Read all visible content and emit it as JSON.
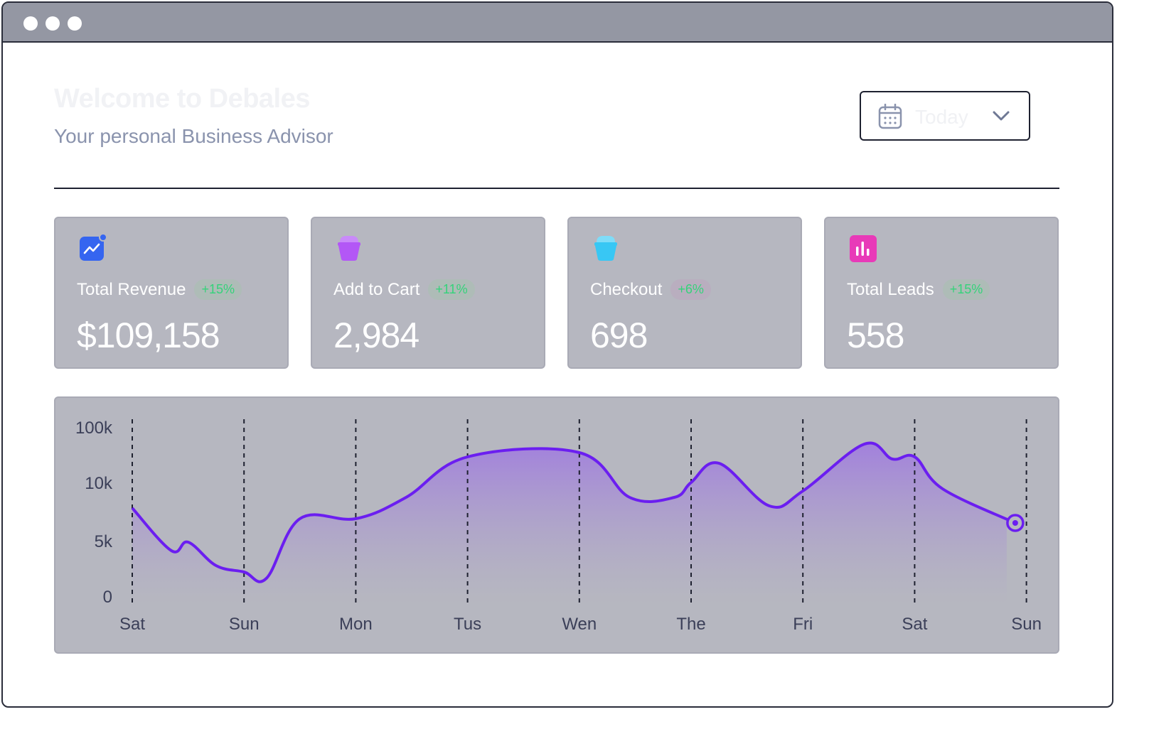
{
  "header": {
    "welcome": "Welcome to Debales",
    "subtitle": "Your personal Business Advisor"
  },
  "date_select": {
    "label": "Today",
    "icon": "calendar-icon"
  },
  "cards": [
    {
      "name": "Total Revenue",
      "badge": "+15%",
      "value": "$109,158",
      "icon": "trend-chart-icon",
      "icon_color": "#3565f0"
    },
    {
      "name": "Add to Cart",
      "badge": "+11%",
      "value": "2,984",
      "icon": "basket-icon",
      "icon_color": "#b357f6"
    },
    {
      "name": "Checkout",
      "badge": "+6%",
      "value": "698",
      "icon": "basket-icon",
      "icon_color": "#38c7f4"
    },
    {
      "name": "Total Leads",
      "badge": "+15%",
      "value": "558",
      "icon": "bar-chart-icon",
      "icon_color": "#e83ab8"
    }
  ],
  "colors": {
    "line": "#6b1ef0",
    "badge_text": "#34d37a",
    "card_bg": "#b6b7c0"
  },
  "chart_data": {
    "type": "area",
    "y_ticks": [
      "100k",
      "10k",
      "5k",
      "0"
    ],
    "categories": [
      "Sat",
      "Sun",
      "Mon",
      "Tus",
      "Wen",
      "The",
      "Fri",
      "Sat",
      "Sun"
    ],
    "x": [
      0,
      0.35,
      0.5,
      0.75,
      1.0,
      1.2,
      1.5,
      2.0,
      2.45,
      3.0,
      4.0,
      4.45,
      4.85,
      5.0,
      5.25,
      5.7,
      6.0,
      6.55,
      6.8,
      7.0,
      7.25,
      7.9
    ],
    "values": [
      4.5,
      2.5,
      2.9,
      1.8,
      1.5,
      1.2,
      4.0,
      4.0,
      5.0,
      6.9,
      7.1,
      5.0,
      5.0,
      5.7,
      6.6,
      4.6,
      5.3,
      7.5,
      6.8,
      6.9,
      5.4,
      3.8
    ],
    "highlight_index": 21
  }
}
